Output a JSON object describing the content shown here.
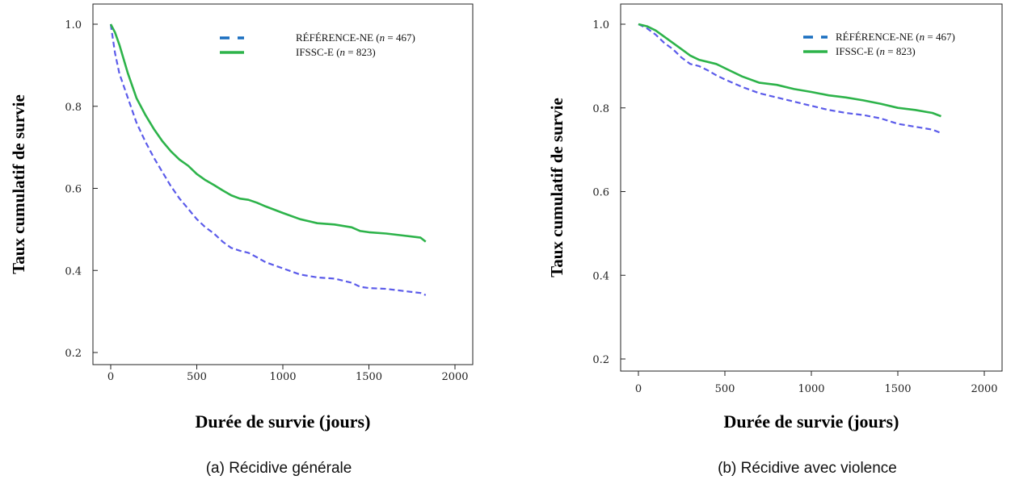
{
  "chart_data": [
    {
      "type": "line",
      "caption": "(a) Récidive générale",
      "xlabel": "Durée de survie (jours)",
      "ylabel": "Taux cumulatif de survie",
      "xlim": [
        0,
        2000
      ],
      "ylim": [
        0.2,
        1.0
      ],
      "xticks": [
        "0",
        "500",
        "1000",
        "1500",
        "2000"
      ],
      "yticks": [
        "1.0",
        "0.8",
        "0.6",
        "0.4",
        "0.2"
      ],
      "grid": false,
      "legend_position": "top-right",
      "series": [
        {
          "name": "RÉFÉRENCE-NE",
          "legend_n": "467",
          "color": "#5b5bea",
          "dash": true,
          "x": [
            0,
            25,
            50,
            100,
            150,
            200,
            250,
            300,
            350,
            400,
            450,
            500,
            550,
            600,
            650,
            700,
            750,
            800,
            850,
            900,
            1000,
            1100,
            1200,
            1300,
            1400,
            1450,
            1500,
            1600,
            1700,
            1800,
            1830
          ],
          "y": [
            1.0,
            0.93,
            0.88,
            0.82,
            0.76,
            0.715,
            0.675,
            0.64,
            0.605,
            0.575,
            0.55,
            0.525,
            0.505,
            0.49,
            0.47,
            0.455,
            0.448,
            0.443,
            0.432,
            0.42,
            0.405,
            0.39,
            0.383,
            0.38,
            0.37,
            0.36,
            0.357,
            0.355,
            0.35,
            0.345,
            0.34
          ]
        },
        {
          "name": "IFSSC-E",
          "legend_n": "823",
          "color": "#2db34a",
          "dash": false,
          "x": [
            0,
            25,
            50,
            100,
            150,
            200,
            250,
            300,
            350,
            400,
            450,
            500,
            550,
            600,
            650,
            700,
            750,
            800,
            850,
            900,
            1000,
            1100,
            1200,
            1300,
            1400,
            1450,
            1500,
            1600,
            1700,
            1800,
            1830
          ],
          "y": [
            1.0,
            0.98,
            0.95,
            0.88,
            0.82,
            0.78,
            0.745,
            0.715,
            0.69,
            0.67,
            0.655,
            0.635,
            0.62,
            0.608,
            0.595,
            0.583,
            0.575,
            0.572,
            0.565,
            0.556,
            0.54,
            0.525,
            0.515,
            0.512,
            0.505,
            0.496,
            0.493,
            0.49,
            0.485,
            0.48,
            0.47
          ]
        }
      ]
    },
    {
      "type": "line",
      "caption": "(b) Récidive avec violence",
      "xlabel": "Durée de survie (jours)",
      "ylabel": "Taux cumulatif de survie",
      "xlim": [
        0,
        2000
      ],
      "ylim": [
        0.2,
        1.0
      ],
      "xticks": [
        "0",
        "500",
        "1000",
        "1500",
        "2000"
      ],
      "yticks": [
        "1.0",
        "0.8",
        "0.6",
        "0.4",
        "0.2"
      ],
      "grid": false,
      "legend_position": "top-right",
      "series": [
        {
          "name": "RÉFÉRENCE-NE",
          "legend_n": "467",
          "color": "#5b5bea",
          "dash": true,
          "x": [
            0,
            50,
            100,
            150,
            200,
            250,
            300,
            350,
            400,
            450,
            500,
            600,
            700,
            800,
            900,
            1000,
            1100,
            1200,
            1300,
            1400,
            1500,
            1600,
            1700,
            1750
          ],
          "y": [
            1.0,
            0.99,
            0.975,
            0.955,
            0.94,
            0.92,
            0.905,
            0.9,
            0.89,
            0.878,
            0.868,
            0.85,
            0.835,
            0.825,
            0.815,
            0.805,
            0.795,
            0.788,
            0.783,
            0.775,
            0.762,
            0.755,
            0.748,
            0.74
          ]
        },
        {
          "name": "IFSSC-E",
          "legend_n": "823",
          "color": "#2db34a",
          "dash": false,
          "x": [
            0,
            50,
            100,
            150,
            200,
            250,
            300,
            350,
            400,
            450,
            500,
            600,
            700,
            800,
            900,
            1000,
            1100,
            1200,
            1300,
            1400,
            1500,
            1600,
            1700,
            1750
          ],
          "y": [
            1.0,
            0.995,
            0.985,
            0.97,
            0.955,
            0.94,
            0.925,
            0.915,
            0.91,
            0.905,
            0.895,
            0.875,
            0.86,
            0.855,
            0.845,
            0.838,
            0.83,
            0.825,
            0.818,
            0.81,
            0.8,
            0.795,
            0.788,
            0.78
          ]
        }
      ]
    }
  ]
}
